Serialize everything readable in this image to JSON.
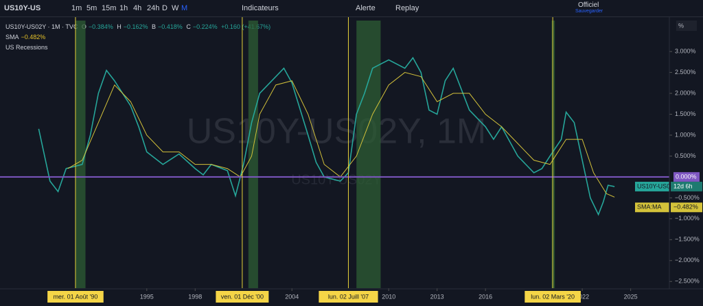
{
  "toolbar": {
    "symbol": "US10Y-US",
    "intervals": [
      "1m",
      "5m",
      "15m",
      "1h",
      "4h",
      "24h",
      "D",
      "W",
      "M"
    ],
    "indicators": "Indicateurs",
    "alert": "Alerte",
    "replay": "Replay",
    "layout": "Officiel",
    "save": "Sauvegarder"
  },
  "legend": {
    "title": "US10Y-US02Y · 1M · TVC",
    "o": "O",
    "o_val": "−0.384%",
    "h": "H",
    "h_val": "−0.162%",
    "b": "B",
    "b_val": "−0.418%",
    "c": "C",
    "c_val": "−0.224%",
    "change": "+0.160 (+41.67%)",
    "sma": "SMA",
    "sma_val": "−0.482%",
    "recessions": "US Recessions"
  },
  "scale_button": "%",
  "watermark": "US10Y-US02Y, 1M",
  "watermark_small": "US10Y-US02Y",
  "chart_data": {
    "type": "line",
    "xlim": [
      1985.9,
      2027.4
    ],
    "xticks": [
      1995,
      1998,
      2004,
      2010,
      2013,
      2016,
      2022,
      2025
    ],
    "ylim": [
      -2.66,
      3.74
    ],
    "yticks": [
      {
        "value": 3,
        "label": "3.000%"
      },
      {
        "value": 2.5,
        "label": "2.500%"
      },
      {
        "value": 2,
        "label": "2.000%"
      },
      {
        "value": 1.5,
        "label": "1.500%"
      },
      {
        "value": 1,
        "label": "1.000%"
      },
      {
        "value": 0.5,
        "label": "0.500%"
      },
      {
        "value": -0.5,
        "label": "−0.500%"
      },
      {
        "value": -1,
        "label": "−1.000%"
      },
      {
        "value": -1.5,
        "label": "−1.500%"
      },
      {
        "value": -2,
        "label": "−2.000%"
      },
      {
        "value": -2.5,
        "label": "−2.500%"
      }
    ],
    "hline": {
      "value": 0,
      "label": "0.000%",
      "color": "#7e57c2"
    },
    "series": [
      {
        "name": "US10Y-US02Y",
        "color": "#26a69a",
        "countdown": "12d 6h",
        "x": [
          1988.3,
          1989,
          1989.5,
          1990,
          1991,
          1991.5,
          1992,
          1992.5,
          1993,
          1994,
          1994.5,
          1995,
          1995.5,
          1996,
          1997,
          1998,
          1998.5,
          1999,
          2000,
          2000.5,
          2001,
          2001.5,
          2002,
          2003,
          2003.5,
          2004,
          2005,
          2005.5,
          2006,
          2007,
          2007.5,
          2008,
          2008.5,
          2009,
          2010,
          2011,
          2011.5,
          2012,
          2012.5,
          2013,
          2013.5,
          2014,
          2014.5,
          2015,
          2016,
          2016.5,
          2017,
          2017.5,
          2018,
          2018.5,
          2019,
          2019.5,
          2020,
          2020.7,
          2021,
          2021.5,
          2022,
          2022.5,
          2023,
          2023.3,
          2023.6,
          2024
        ],
        "values": [
          1.15,
          -0.1,
          -0.35,
          0.2,
          0.3,
          1.0,
          2.0,
          2.55,
          2.3,
          1.7,
          1.2,
          0.6,
          0.45,
          0.3,
          0.55,
          0.2,
          0.05,
          0.3,
          0.15,
          -0.45,
          0.3,
          1.3,
          2.0,
          2.4,
          2.6,
          2.25,
          1.0,
          0.35,
          0.0,
          -0.1,
          0.1,
          1.5,
          2.0,
          2.6,
          2.8,
          2.6,
          2.85,
          2.5,
          1.6,
          1.5,
          2.3,
          2.6,
          2.1,
          1.6,
          1.2,
          0.9,
          1.2,
          0.85,
          0.5,
          0.3,
          0.1,
          0.2,
          0.5,
          0.9,
          1.55,
          1.3,
          0.4,
          -0.5,
          -0.9,
          -0.6,
          -0.2,
          -0.23
        ]
      },
      {
        "name": "SMA:MA",
        "color": "#d4c23a",
        "value_label": "−0.482%",
        "x": [
          1990.1,
          1991,
          1992,
          1993,
          1994,
          1995,
          1996,
          1997,
          1998,
          1999,
          2000,
          2000.8,
          2001.5,
          2002,
          2003,
          2004,
          2005,
          2006,
          2007,
          2008,
          2009,
          2010,
          2011,
          2012,
          2013,
          2014,
          2015,
          2016,
          2017,
          2018,
          2019,
          2020,
          2021,
          2022,
          2022.7,
          2023.5,
          2024
        ],
        "values": [
          0.2,
          0.4,
          1.3,
          2.2,
          1.8,
          1.0,
          0.6,
          0.6,
          0.3,
          0.3,
          0.2,
          0.0,
          0.5,
          1.5,
          2.2,
          2.3,
          1.5,
          0.3,
          0.0,
          0.5,
          1.5,
          2.2,
          2.5,
          2.4,
          1.8,
          2.0,
          2.0,
          1.5,
          1.2,
          0.8,
          0.4,
          0.3,
          0.9,
          0.9,
          0.1,
          -0.4,
          -0.482
        ]
      }
    ],
    "recessions": [
      {
        "start": 1990.6,
        "end": 1991.2
      },
      {
        "start": 2001.3,
        "end": 2001.9
      },
      {
        "start": 2008.0,
        "end": 2009.5
      },
      {
        "start": 2020.1,
        "end": 2020.3
      }
    ],
    "markers": [
      {
        "x": 1990.58,
        "label": "mer. 01 Août '90"
      },
      {
        "x": 2000.92,
        "label": "ven. 01 Déc '00"
      },
      {
        "x": 2007.5,
        "label": "lun. 02 Juill '07"
      },
      {
        "x": 2020.17,
        "label": "lun. 02 Mars '20"
      }
    ]
  }
}
